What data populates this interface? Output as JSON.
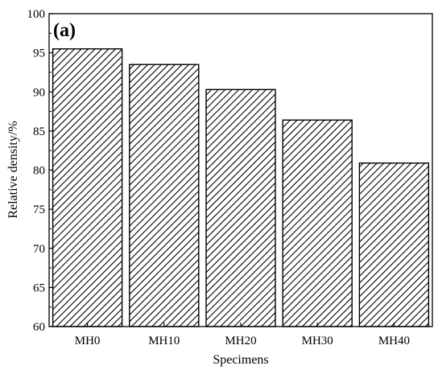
{
  "chart_data": {
    "type": "bar",
    "panel_label": "(a)",
    "title": "",
    "xlabel": "Specimens",
    "ylabel": "Relative density/%",
    "categories": [
      "MH0",
      "MH10",
      "MH20",
      "MH30",
      "MH40"
    ],
    "values": [
      95.5,
      93.5,
      90.3,
      86.4,
      80.9
    ],
    "ylim": [
      60,
      100
    ],
    "yticks": [
      60,
      65,
      70,
      75,
      80,
      85,
      90,
      95,
      100
    ],
    "ytick_labels": [
      "60",
      "65",
      "70",
      "75",
      "80",
      "85",
      "90",
      "95",
      "100"
    ],
    "grid": false,
    "legend": "none",
    "bar_fill": "hatched diagonal",
    "colors": {
      "bar_stroke": "#000000",
      "hatch": "#000000",
      "background": "#ffffff"
    }
  }
}
